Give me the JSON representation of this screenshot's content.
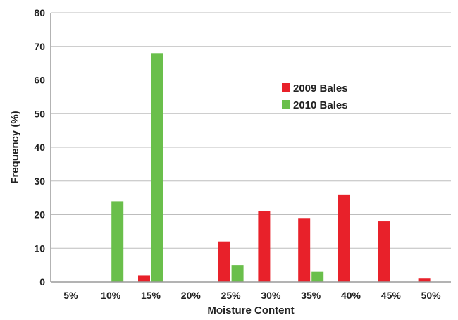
{
  "chart_data": {
    "type": "bar",
    "categories": [
      "5%",
      "10%",
      "15%",
      "20%",
      "25%",
      "30%",
      "35%",
      "40%",
      "45%",
      "50%"
    ],
    "series": [
      {
        "name": "2009 Bales",
        "color": "#e8212a",
        "values": [
          0,
          0,
          2,
          0,
          12,
          21,
          19,
          26,
          18,
          1
        ]
      },
      {
        "name": "2010 Bales",
        "color": "#6abf4b",
        "values": [
          0,
          24,
          68,
          0,
          5,
          0,
          3,
          0,
          0,
          0
        ]
      }
    ],
    "xlabel": "Moisture Content",
    "ylabel": "Frequency (%)",
    "ylim": [
      0,
      80
    ],
    "yticks": [
      0,
      10,
      20,
      30,
      40,
      50,
      60,
      70,
      80
    ],
    "grid": true,
    "legend_position": "top-right"
  }
}
